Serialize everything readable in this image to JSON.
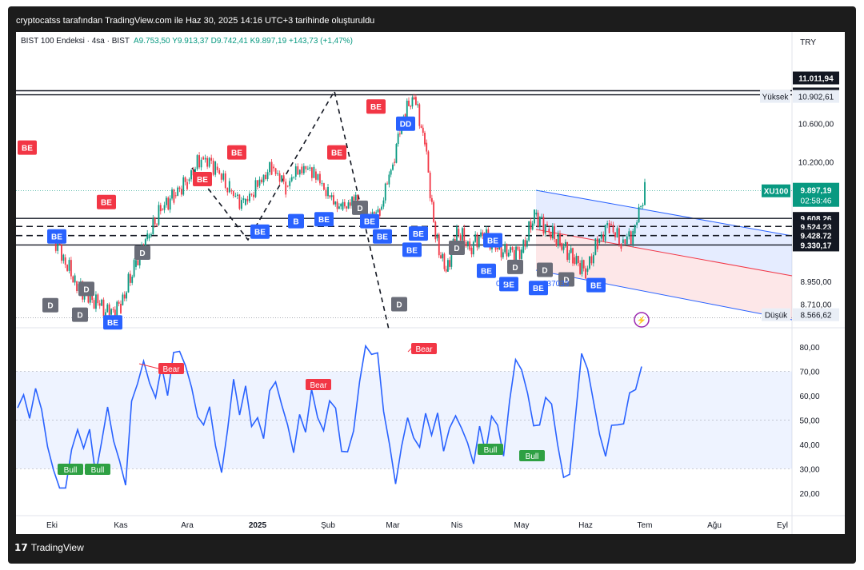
{
  "header": {
    "created_by": "cryptocatss tarafından TradingView.com ile Haz 30, 2025 14:16 UTC+3 tarihinde oluşturuldu"
  },
  "symbol": {
    "name": "BIST 100 Endeksi · 4sa · BIST",
    "open": "A9.753,50",
    "high": "Y9.913,37",
    "low": "D9.742,41",
    "close": "K9.897,19",
    "change": "+143,73 (+1,47%)"
  },
  "currency": "TRY",
  "footer": {
    "logo": "𝟭𝟳",
    "brand": "TradingView"
  },
  "colors": {
    "up": "#089981",
    "down": "#f23645",
    "rsi": "#2962ff",
    "channel_blue": "#2962ff",
    "channel_red": "#f23645"
  },
  "chart_data": [
    {
      "type": "candlestick",
      "title": "BIST 100 Endeksi · 4sa · BIST",
      "x_tick_labels": [
        "Eki",
        "Kas",
        "Ara",
        "2025",
        "Şub",
        "Mar",
        "Nis",
        "May",
        "Haz",
        "Tem",
        "Ağu",
        "Eyl"
      ],
      "y_tick_labels": [
        "10.600,00",
        "10.200,00",
        "8.950,00",
        "8.710,00"
      ],
      "ylim": [
        8480,
        11100
      ],
      "price_series_approx": [
        [
          "Eki",
          9450
        ],
        [
          "",
          9200
        ],
        [
          "",
          8950
        ],
        [
          "",
          8800
        ],
        [
          "",
          8720
        ],
        [
          "",
          8600
        ],
        [
          "Kas",
          8700
        ],
        [
          "",
          9100
        ],
        [
          "",
          9400
        ],
        [
          "",
          9700
        ],
        [
          "",
          9850
        ],
        [
          "Ara",
          10000
        ],
        [
          "",
          10250
        ],
        [
          "",
          10150
        ],
        [
          "",
          9900
        ],
        [
          "",
          9750
        ],
        [
          "2025",
          9950
        ],
        [
          "",
          10150
        ],
        [
          "",
          9950
        ],
        [
          "",
          10150
        ],
        [
          "",
          10100
        ],
        [
          "Şub",
          9850
        ],
        [
          "",
          9700
        ],
        [
          "",
          9800
        ],
        [
          "",
          9600
        ],
        [
          "",
          9700
        ],
        [
          "Mar",
          10200
        ],
        [
          "",
          10700
        ],
        [
          "",
          10880
        ],
        [
          "",
          10400
        ],
        [
          "",
          9400
        ],
        [
          "",
          9050
        ],
        [
          "Nis",
          9500
        ],
        [
          "",
          9300
        ],
        [
          "",
          9450
        ],
        [
          "",
          9300
        ],
        [
          "",
          9250
        ],
        [
          "May",
          9250
        ],
        [
          "",
          9650
        ],
        [
          "",
          9500
        ],
        [
          "",
          9350
        ],
        [
          "",
          9200
        ],
        [
          "Haz",
          9050
        ],
        [
          "",
          9350
        ],
        [
          "",
          9550
        ],
        [
          "",
          9350
        ],
        [
          "",
          9450
        ],
        [
          "Tem",
          9897
        ]
      ],
      "price_labels": [
        {
          "label": "11.011,94",
          "value": 11011.94
        },
        {
          "label": "10.945,20",
          "value": 10945.2
        },
        {
          "label": "Yüksek",
          "value_label": "10.902,61",
          "value": 10902.61
        },
        {
          "label": "XU100",
          "value_label": "9.897,19",
          "countdown": "02:58:46",
          "value": 9897.19
        },
        {
          "label": "9.608,26",
          "value": 9608.26
        },
        {
          "label": "9.524,23",
          "value": 9524.23
        },
        {
          "label": "9.428,72",
          "value": 9428.72
        },
        {
          "label": "9.330,17",
          "value": 9330.17
        },
        {
          "label": "Düşük",
          "value_label": "8.566,62",
          "value": 8566.62
        }
      ],
      "horizontal_levels": [
        {
          "value": 10945.2,
          "style": "solid"
        },
        {
          "value": 10902.61,
          "style": "solid"
        },
        {
          "value": 9608.26,
          "style": "solid"
        },
        {
          "value": 9524.23,
          "style": "dashed"
        },
        {
          "value": 9428.72,
          "style": "dashed"
        },
        {
          "value": 9330.17,
          "style": "solid"
        }
      ],
      "signals": [
        {
          "text": "BE",
          "kind": "bear-red",
          "x": "Eki",
          "value": 10350
        },
        {
          "text": "BE",
          "kind": "bull-blue",
          "x": "Eki",
          "value": 9420
        },
        {
          "text": "D",
          "kind": "gray",
          "x": "Eki",
          "value": 8870
        },
        {
          "text": "D",
          "kind": "gray",
          "x": "Eki",
          "value": 8700
        },
        {
          "text": "D",
          "kind": "gray",
          "x": "Eki",
          "value": 8600
        },
        {
          "text": "BE",
          "kind": "bull-blue",
          "x": "Kas",
          "value": 8520
        },
        {
          "text": "D",
          "kind": "gray",
          "x": "Kas",
          "value": 9250
        },
        {
          "text": "BE",
          "kind": "bear-red",
          "x": "Kas",
          "value": 9780
        },
        {
          "text": "BE",
          "kind": "bear-red",
          "x": "Ara",
          "value": 10020
        },
        {
          "text": "BE",
          "kind": "bear-red",
          "x": "2025",
          "value": 10300
        },
        {
          "text": "BE",
          "kind": "bear-red",
          "x": "Şub",
          "value": 10300
        },
        {
          "text": "B",
          "kind": "bull-blue",
          "x": "2025",
          "value": 9580
        },
        {
          "text": "BE",
          "kind": "bull-blue",
          "x": "2025",
          "value": 9470
        },
        {
          "text": "D",
          "kind": "gray",
          "x": "Şub",
          "value": 9720
        },
        {
          "text": "BE",
          "kind": "bull-blue",
          "x": "Şub",
          "value": 9600
        },
        {
          "text": "BE",
          "kind": "bull-blue",
          "x": "Mar",
          "value": 9450
        },
        {
          "text": "BE",
          "kind": "bull-blue",
          "x": "Mar",
          "value": 9420
        },
        {
          "text": "BE",
          "kind": "bull-blue",
          "x": "Mar",
          "value": 9280
        },
        {
          "text": "BE",
          "kind": "bear-red",
          "x": "Mar",
          "value": 10780
        },
        {
          "text": "DD",
          "kind": "bull-blue",
          "x": "Mar",
          "value": 10600
        },
        {
          "text": "BE",
          "kind": "bull-blue",
          "x": "Mar",
          "value": 9580
        },
        {
          "text": "D",
          "kind": "gray",
          "x": "Mar",
          "value": 8710
        },
        {
          "text": "BE",
          "kind": "bull-blue",
          "x": "Nis",
          "value": 9380
        },
        {
          "text": "D",
          "kind": "gray",
          "x": "Nis",
          "value": 9300
        },
        {
          "text": "BE",
          "kind": "bull-blue",
          "x": "Nis",
          "value": 9060
        },
        {
          "text": "D",
          "kind": "gray",
          "x": "May",
          "value": 9100
        },
        {
          "text": "D",
          "kind": "gray",
          "x": "May",
          "value": 9070
        },
        {
          "text": "BE",
          "kind": "bull-blue",
          "x": "May",
          "value": 8920
        },
        {
          "text": "BE",
          "kind": "bull-blue",
          "x": "May",
          "value": 8880
        },
        {
          "text": "D",
          "kind": "gray",
          "x": "Haz",
          "value": 8970
        },
        {
          "text": "BE",
          "kind": "bull-blue",
          "x": "Haz",
          "value": 8910
        }
      ],
      "partial_labels": [
        "0.2",
        "237033"
      ]
    },
    {
      "type": "line",
      "y_tick_labels": [
        "80,00",
        "70,00",
        "60,00",
        "50,00",
        "40,00",
        "30,00",
        "20,00"
      ],
      "ylim": [
        15,
        83
      ],
      "band": [
        30,
        70
      ],
      "midline": 50,
      "series": [
        {
          "values": [
            55,
            62,
            48,
            66,
            52,
            40,
            30,
            20,
            25,
            35,
            48,
            38,
            45,
            30,
            38,
            58,
            40,
            33,
            25,
            55,
            68,
            72,
            66,
            60,
            70,
            63,
            75,
            80,
            72,
            62,
            54,
            45,
            58,
            38,
            28,
            48,
            64,
            55,
            62,
            48,
            52,
            40,
            65,
            63,
            58,
            48,
            35,
            55,
            42,
            65,
            50,
            45,
            60,
            52,
            40,
            35,
            46,
            67,
            78,
            80,
            75,
            55,
            40,
            22,
            42,
            48,
            45,
            38,
            52,
            46,
            50,
            40,
            45,
            52,
            48,
            38,
            35,
            45,
            38,
            52,
            46,
            38,
            55,
            77,
            70,
            60,
            50,
            45,
            62,
            55,
            40,
            28,
            25,
            55,
            75,
            72,
            58,
            42,
            38,
            45,
            50,
            48,
            60,
            65,
            72
          ]
        }
      ],
      "signals": [
        {
          "text": "Bear",
          "kind": "bear"
        },
        {
          "text": "Bear",
          "kind": "bear"
        },
        {
          "text": "Bear",
          "kind": "bear"
        },
        {
          "text": "Bull",
          "kind": "bull"
        },
        {
          "text": "Bull",
          "kind": "bull"
        },
        {
          "text": "Bull",
          "kind": "bull"
        },
        {
          "text": "Bull",
          "kind": "bull"
        }
      ]
    }
  ]
}
